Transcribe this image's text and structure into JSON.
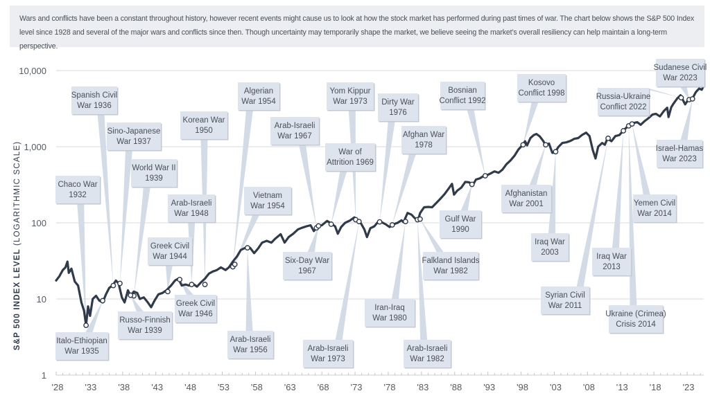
{
  "intro": {
    "text": "Wars and conflicts have been a constant throughout history, however recent events might cause us to look at how the stock market has performed during past times of war. The chart below shows the S&P 500 Index level since 1928 and several of the major wars and conflicts since then. Though uncertainty may temporarily shape the market, we believe seeing the market’s overall resiliency can help maintain a long-term perspective."
  },
  "chart_data": {
    "type": "line",
    "title": "",
    "ylabel_main": "S&P 500 INDEX LEVEL",
    "ylabel_sub": "(LOGARITHMIC SCALE)",
    "xlabel": "",
    "yscale": "log",
    "ylim": [
      1,
      10000
    ],
    "xlim": [
      1928,
      2025.5
    ],
    "grid": true,
    "y_ticks": [
      {
        "value": 1,
        "label": "1"
      },
      {
        "value": 10,
        "label": "10"
      },
      {
        "value": 100,
        "label": "100"
      },
      {
        "value": 1000,
        "label": "1,000"
      },
      {
        "value": 10000,
        "label": "10,000"
      }
    ],
    "x_ticks": [
      {
        "value": 1928,
        "label": "'28"
      },
      {
        "value": 1933,
        "label": "'33"
      },
      {
        "value": 1938,
        "label": "'38"
      },
      {
        "value": 1943,
        "label": "'43"
      },
      {
        "value": 1948,
        "label": "'48"
      },
      {
        "value": 1953,
        "label": "'53"
      },
      {
        "value": 1958,
        "label": "'58"
      },
      {
        "value": 1963,
        "label": "'63"
      },
      {
        "value": 1968,
        "label": "'68"
      },
      {
        "value": 1973,
        "label": "'73"
      },
      {
        "value": 1978,
        "label": "'78"
      },
      {
        "value": 1983,
        "label": "'83"
      },
      {
        "value": 1988,
        "label": "'88"
      },
      {
        "value": 1993,
        "label": "'93"
      },
      {
        "value": 1998,
        "label": "'98"
      },
      {
        "value": 2003,
        "label": "'03"
      },
      {
        "value": 2008,
        "label": "'08"
      },
      {
        "value": 2013,
        "label": "'13"
      },
      {
        "value": 2018,
        "label": "'18"
      },
      {
        "value": 2023,
        "label": "'23"
      }
    ],
    "series": [
      {
        "name": "S&P 500 Index",
        "color": "#2f3a4a",
        "points": [
          [
            1928.0,
            17.5
          ],
          [
            1928.5,
            20
          ],
          [
            1929.0,
            24
          ],
          [
            1929.4,
            26
          ],
          [
            1929.7,
            31
          ],
          [
            1929.9,
            22
          ],
          [
            1930.3,
            25
          ],
          [
            1930.8,
            17
          ],
          [
            1931.3,
            15
          ],
          [
            1931.8,
            9
          ],
          [
            1932.2,
            7
          ],
          [
            1932.5,
            4.5
          ],
          [
            1932.8,
            8
          ],
          [
            1933.1,
            6
          ],
          [
            1933.5,
            10
          ],
          [
            1934.0,
            11
          ],
          [
            1934.5,
            9.5
          ],
          [
            1935.0,
            9
          ],
          [
            1935.5,
            11.5
          ],
          [
            1936.0,
            14
          ],
          [
            1936.5,
            15
          ],
          [
            1937.0,
            17.5
          ],
          [
            1937.4,
            16
          ],
          [
            1937.9,
            10.5
          ],
          [
            1938.3,
            9
          ],
          [
            1938.8,
            13
          ],
          [
            1939.2,
            11
          ],
          [
            1939.7,
            12.5
          ],
          [
            1940.2,
            12
          ],
          [
            1940.6,
            10
          ],
          [
            1941.2,
            10.5
          ],
          [
            1941.8,
            9
          ],
          [
            1942.3,
            7.8
          ],
          [
            1942.8,
            9.5
          ],
          [
            1943.4,
            11.5
          ],
          [
            1944.0,
            12
          ],
          [
            1944.6,
            13
          ],
          [
            1945.3,
            15
          ],
          [
            1945.9,
            17.5
          ],
          [
            1946.4,
            18.5
          ],
          [
            1946.9,
            15
          ],
          [
            1947.5,
            15.5
          ],
          [
            1948.0,
            15
          ],
          [
            1948.5,
            16
          ],
          [
            1949.2,
            14.5
          ],
          [
            1949.8,
            16.5
          ],
          [
            1950.4,
            18.5
          ],
          [
            1951.0,
            21.5
          ],
          [
            1951.6,
            23
          ],
          [
            1952.2,
            24
          ],
          [
            1952.8,
            26
          ],
          [
            1953.5,
            24
          ],
          [
            1954.0,
            26
          ],
          [
            1954.6,
            31
          ],
          [
            1955.2,
            36
          ],
          [
            1955.8,
            44
          ],
          [
            1956.5,
            47
          ],
          [
            1957.2,
            47
          ],
          [
            1957.8,
            40
          ],
          [
            1958.4,
            46
          ],
          [
            1959.0,
            55
          ],
          [
            1959.7,
            58
          ],
          [
            1960.4,
            55
          ],
          [
            1961.0,
            62
          ],
          [
            1961.8,
            71
          ],
          [
            1962.4,
            55
          ],
          [
            1963.0,
            65
          ],
          [
            1963.7,
            72
          ],
          [
            1964.4,
            82
          ],
          [
            1965.0,
            86
          ],
          [
            1965.7,
            90
          ],
          [
            1966.3,
            93
          ],
          [
            1966.8,
            78
          ],
          [
            1967.4,
            90
          ],
          [
            1968.0,
            93
          ],
          [
            1968.8,
            106
          ],
          [
            1969.4,
            98
          ],
          [
            1970.0,
            90
          ],
          [
            1970.4,
            72
          ],
          [
            1970.9,
            88
          ],
          [
            1971.5,
            100
          ],
          [
            1972.2,
            107
          ],
          [
            1972.9,
            118
          ],
          [
            1973.4,
            108
          ],
          [
            1973.9,
            98
          ],
          [
            1974.4,
            82
          ],
          [
            1974.8,
            65
          ],
          [
            1975.3,
            85
          ],
          [
            1975.9,
            90
          ],
          [
            1976.5,
            104
          ],
          [
            1977.0,
            102
          ],
          [
            1977.6,
            96
          ],
          [
            1978.2,
            88
          ],
          [
            1978.8,
            96
          ],
          [
            1979.4,
            100
          ],
          [
            1980.0,
            108
          ],
          [
            1980.3,
            102
          ],
          [
            1980.9,
            135
          ],
          [
            1981.5,
            128
          ],
          [
            1982.0,
            115
          ],
          [
            1982.5,
            110
          ],
          [
            1982.8,
            135
          ],
          [
            1983.4,
            160
          ],
          [
            1984.0,
            162
          ],
          [
            1984.6,
            160
          ],
          [
            1985.3,
            185
          ],
          [
            1985.9,
            210
          ],
          [
            1986.5,
            240
          ],
          [
            1987.2,
            290
          ],
          [
            1987.6,
            325
          ],
          [
            1987.9,
            235
          ],
          [
            1988.4,
            265
          ],
          [
            1989.0,
            290
          ],
          [
            1989.6,
            345
          ],
          [
            1990.2,
            340
          ],
          [
            1990.7,
            310
          ],
          [
            1991.2,
            370
          ],
          [
            1991.8,
            385
          ],
          [
            1992.3,
            410
          ],
          [
            1992.8,
            420
          ],
          [
            1993.4,
            445
          ],
          [
            1994.0,
            475
          ],
          [
            1994.6,
            455
          ],
          [
            1995.2,
            500
          ],
          [
            1995.8,
            590
          ],
          [
            1996.4,
            660
          ],
          [
            1997.0,
            760
          ],
          [
            1997.6,
            920
          ],
          [
            1998.2,
            1050
          ],
          [
            1998.6,
            1180
          ],
          [
            1998.9,
            1040
          ],
          [
            1999.4,
            1300
          ],
          [
            1999.9,
            1420
          ],
          [
            2000.3,
            1470
          ],
          [
            2000.8,
            1370
          ],
          [
            2001.3,
            1200
          ],
          [
            2001.7,
            1050
          ],
          [
            2002.2,
            1100
          ],
          [
            2002.7,
            830
          ],
          [
            2003.1,
            840
          ],
          [
            2003.6,
            990
          ],
          [
            2004.2,
            1120
          ],
          [
            2004.8,
            1140
          ],
          [
            2005.4,
            1190
          ],
          [
            2006.0,
            1270
          ],
          [
            2006.6,
            1300
          ],
          [
            2007.2,
            1430
          ],
          [
            2007.8,
            1530
          ],
          [
            2008.3,
            1380
          ],
          [
            2008.8,
            900
          ],
          [
            2009.2,
            700
          ],
          [
            2009.6,
            1000
          ],
          [
            2010.2,
            1120
          ],
          [
            2010.6,
            1060
          ],
          [
            2011.0,
            1280
          ],
          [
            2011.6,
            1180
          ],
          [
            2012.2,
            1380
          ],
          [
            2012.8,
            1420
          ],
          [
            2013.4,
            1630
          ],
          [
            2013.9,
            1800
          ],
          [
            2014.4,
            1930
          ],
          [
            2014.9,
            2050
          ],
          [
            2015.5,
            2100
          ],
          [
            2016.0,
            1940
          ],
          [
            2016.6,
            2170
          ],
          [
            2017.2,
            2380
          ],
          [
            2017.8,
            2650
          ],
          [
            2018.3,
            2700
          ],
          [
            2018.9,
            2500
          ],
          [
            2019.5,
            2950
          ],
          [
            2020.0,
            3250
          ],
          [
            2020.2,
            2450
          ],
          [
            2020.6,
            3300
          ],
          [
            2021.0,
            3750
          ],
          [
            2021.5,
            4300
          ],
          [
            2022.0,
            4750
          ],
          [
            2022.3,
            4200
          ],
          [
            2022.7,
            3600
          ],
          [
            2023.0,
            3950
          ],
          [
            2023.4,
            4200
          ],
          [
            2023.8,
            4300
          ],
          [
            2024.3,
            5200
          ],
          [
            2024.8,
            5800
          ],
          [
            2025.2,
            5600
          ],
          [
            2025.6,
            6600
          ]
        ]
      }
    ],
    "annotations": [
      {
        "label": [
          "Chaco War",
          "1932"
        ],
        "x": 1932.5,
        "y": 4.5
      },
      {
        "label": [
          "Spanish Civil",
          "War 1936"
        ],
        "x": 1936.6,
        "y": 15
      },
      {
        "label": [
          "Sino-Japanese",
          "War 1937"
        ],
        "x": 1937.6,
        "y": 16
      },
      {
        "label": [
          "World War II",
          "1939"
        ],
        "x": 1939.7,
        "y": 11
      },
      {
        "label": [
          "Italo-Ethiopian",
          "War 1935"
        ],
        "x": 1935.0,
        "y": 9.5
      },
      {
        "label": [
          "Russo-Finnish",
          "War 1939"
        ],
        "x": 1939.2,
        "y": 11.2
      },
      {
        "label": [
          "Greek Civil",
          "War 1944"
        ],
        "x": 1944.8,
        "y": 12.5
      },
      {
        "label": [
          "Greek Civil",
          "War 1946"
        ],
        "x": 1946.6,
        "y": 18
      },
      {
        "label": [
          "Korean War",
          "1950"
        ],
        "x": 1950.4,
        "y": 15.5
      },
      {
        "label": [
          "Arab-Israeli",
          "War 1948"
        ],
        "x": 1948.4,
        "y": 15.5
      },
      {
        "label": [
          "Algerian",
          "War 1954"
        ],
        "x": 1954.6,
        "y": 26.5
      },
      {
        "label": [
          "Vietnam",
          "War 1954"
        ],
        "x": 1954.9,
        "y": 28.5
      },
      {
        "label": [
          "Arab-Israeli",
          "War 1956"
        ],
        "x": 1956.8,
        "y": 47
      },
      {
        "label": [
          "Arab-Israeli",
          "War 1967"
        ],
        "x": 1967.2,
        "y": 86
      },
      {
        "label": [
          "Six-Day War",
          "1967"
        ],
        "x": 1967.5,
        "y": 91
      },
      {
        "label": [
          "War of",
          "Attrition 1969"
        ],
        "x": 1969.4,
        "y": 96
      },
      {
        "label": [
          "Yom Kippur",
          "War 1973"
        ],
        "x": 1973.1,
        "y": 110
      },
      {
        "label": [
          "Arab-Israeli",
          "War 1973"
        ],
        "x": 1973.6,
        "y": 104
      },
      {
        "label": [
          "Dirty War",
          "1976"
        ],
        "x": 1976.7,
        "y": 103
      },
      {
        "label": [
          "Afghan War",
          "1978"
        ],
        "x": 1978.6,
        "y": 94
      },
      {
        "label": [
          "Iran-Iraq",
          "War 1980"
        ],
        "x": 1980.6,
        "y": 104
      },
      {
        "label": [
          "Arab-Israeli",
          "War 1982"
        ],
        "x": 1982.4,
        "y": 110
      },
      {
        "label": [
          "Falkland Islands",
          "War 1982"
        ],
        "x": 1982.8,
        "y": 112
      },
      {
        "label": [
          "Gulf War",
          "1990"
        ],
        "x": 1990.6,
        "y": 320
      },
      {
        "label": [
          "Bosnian",
          "Conflict 1992"
        ],
        "x": 1992.6,
        "y": 415
      },
      {
        "label": [
          "Kosovo",
          "Conflict 1998"
        ],
        "x": 1998.3,
        "y": 1060
      },
      {
        "label": [
          "Afghanistan",
          "War 2001"
        ],
        "x": 2001.7,
        "y": 1060
      },
      {
        "label": [
          "Iraq War",
          "2003"
        ],
        "x": 2003.2,
        "y": 860
      },
      {
        "label": [
          "Syrian Civil",
          "War 2011"
        ],
        "x": 2011.1,
        "y": 1290
      },
      {
        "label": [
          "Iraq War",
          "2013"
        ],
        "x": 2013.4,
        "y": 1620
      },
      {
        "label": [
          "Ukraine (Crimea)",
          "Crisis 2014"
        ],
        "x": 2014.2,
        "y": 1880
      },
      {
        "label": [
          "Yemen Civil",
          "War 2014"
        ],
        "x": 2014.7,
        "y": 1990
      },
      {
        "label": [
          "Russia-Ukraine",
          "Conflict 2022"
        ],
        "x": 2022.1,
        "y": 4400
      },
      {
        "label": [
          "Sudanese Civil",
          "War 2023"
        ],
        "x": 2023.3,
        "y": 4150
      },
      {
        "label": [
          "Israel-Hamas",
          "War 2023"
        ],
        "x": 2023.8,
        "y": 4250
      }
    ]
  },
  "style": {
    "line_color": "#2f3a4a",
    "box_fill": "#dde4ee",
    "pointer_fill": "#d3dbe7",
    "grid_color": "#d8d8d8",
    "intro_background": "#eceef1"
  }
}
